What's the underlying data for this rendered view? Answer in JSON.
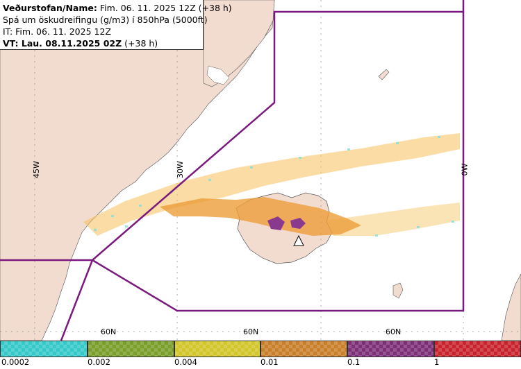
{
  "header": {
    "line1_bold": "Veðurstofan/Name:",
    "line1_rest": "Fim. 06. 11. 2025 12Z (+38 h)",
    "line2": "Spá um öskudreifingu (g/m3) í 850hPa (5000ft)",
    "line3": "IT: Fim. 06. 11. 2025 12Z",
    "line4_bold": "VT: Lau. 08.11.2025 02Z",
    "line4_rest": "(+38 h)"
  },
  "map": {
    "lon_labels": [
      "45W",
      "30W",
      "0W"
    ],
    "lat_labels": [
      "60N",
      "60N",
      "60N"
    ],
    "colors": {
      "land": "#f2dcd0",
      "sea": "#ffffff",
      "boundary": "#7a1a7e",
      "ash_low": "#f5c05a",
      "ash_mid": "#ec9e3a",
      "ash_high": "#8a3a8e"
    }
  },
  "legend": {
    "ticks": [
      "0.0002",
      "0.002",
      "0.004",
      "0.01",
      "0.1",
      "1"
    ],
    "colors": [
      "#35c8c8",
      "#7a9e2a",
      "#d2c62a",
      "#c97f2a",
      "#7d2f78",
      "#c8222c"
    ]
  }
}
